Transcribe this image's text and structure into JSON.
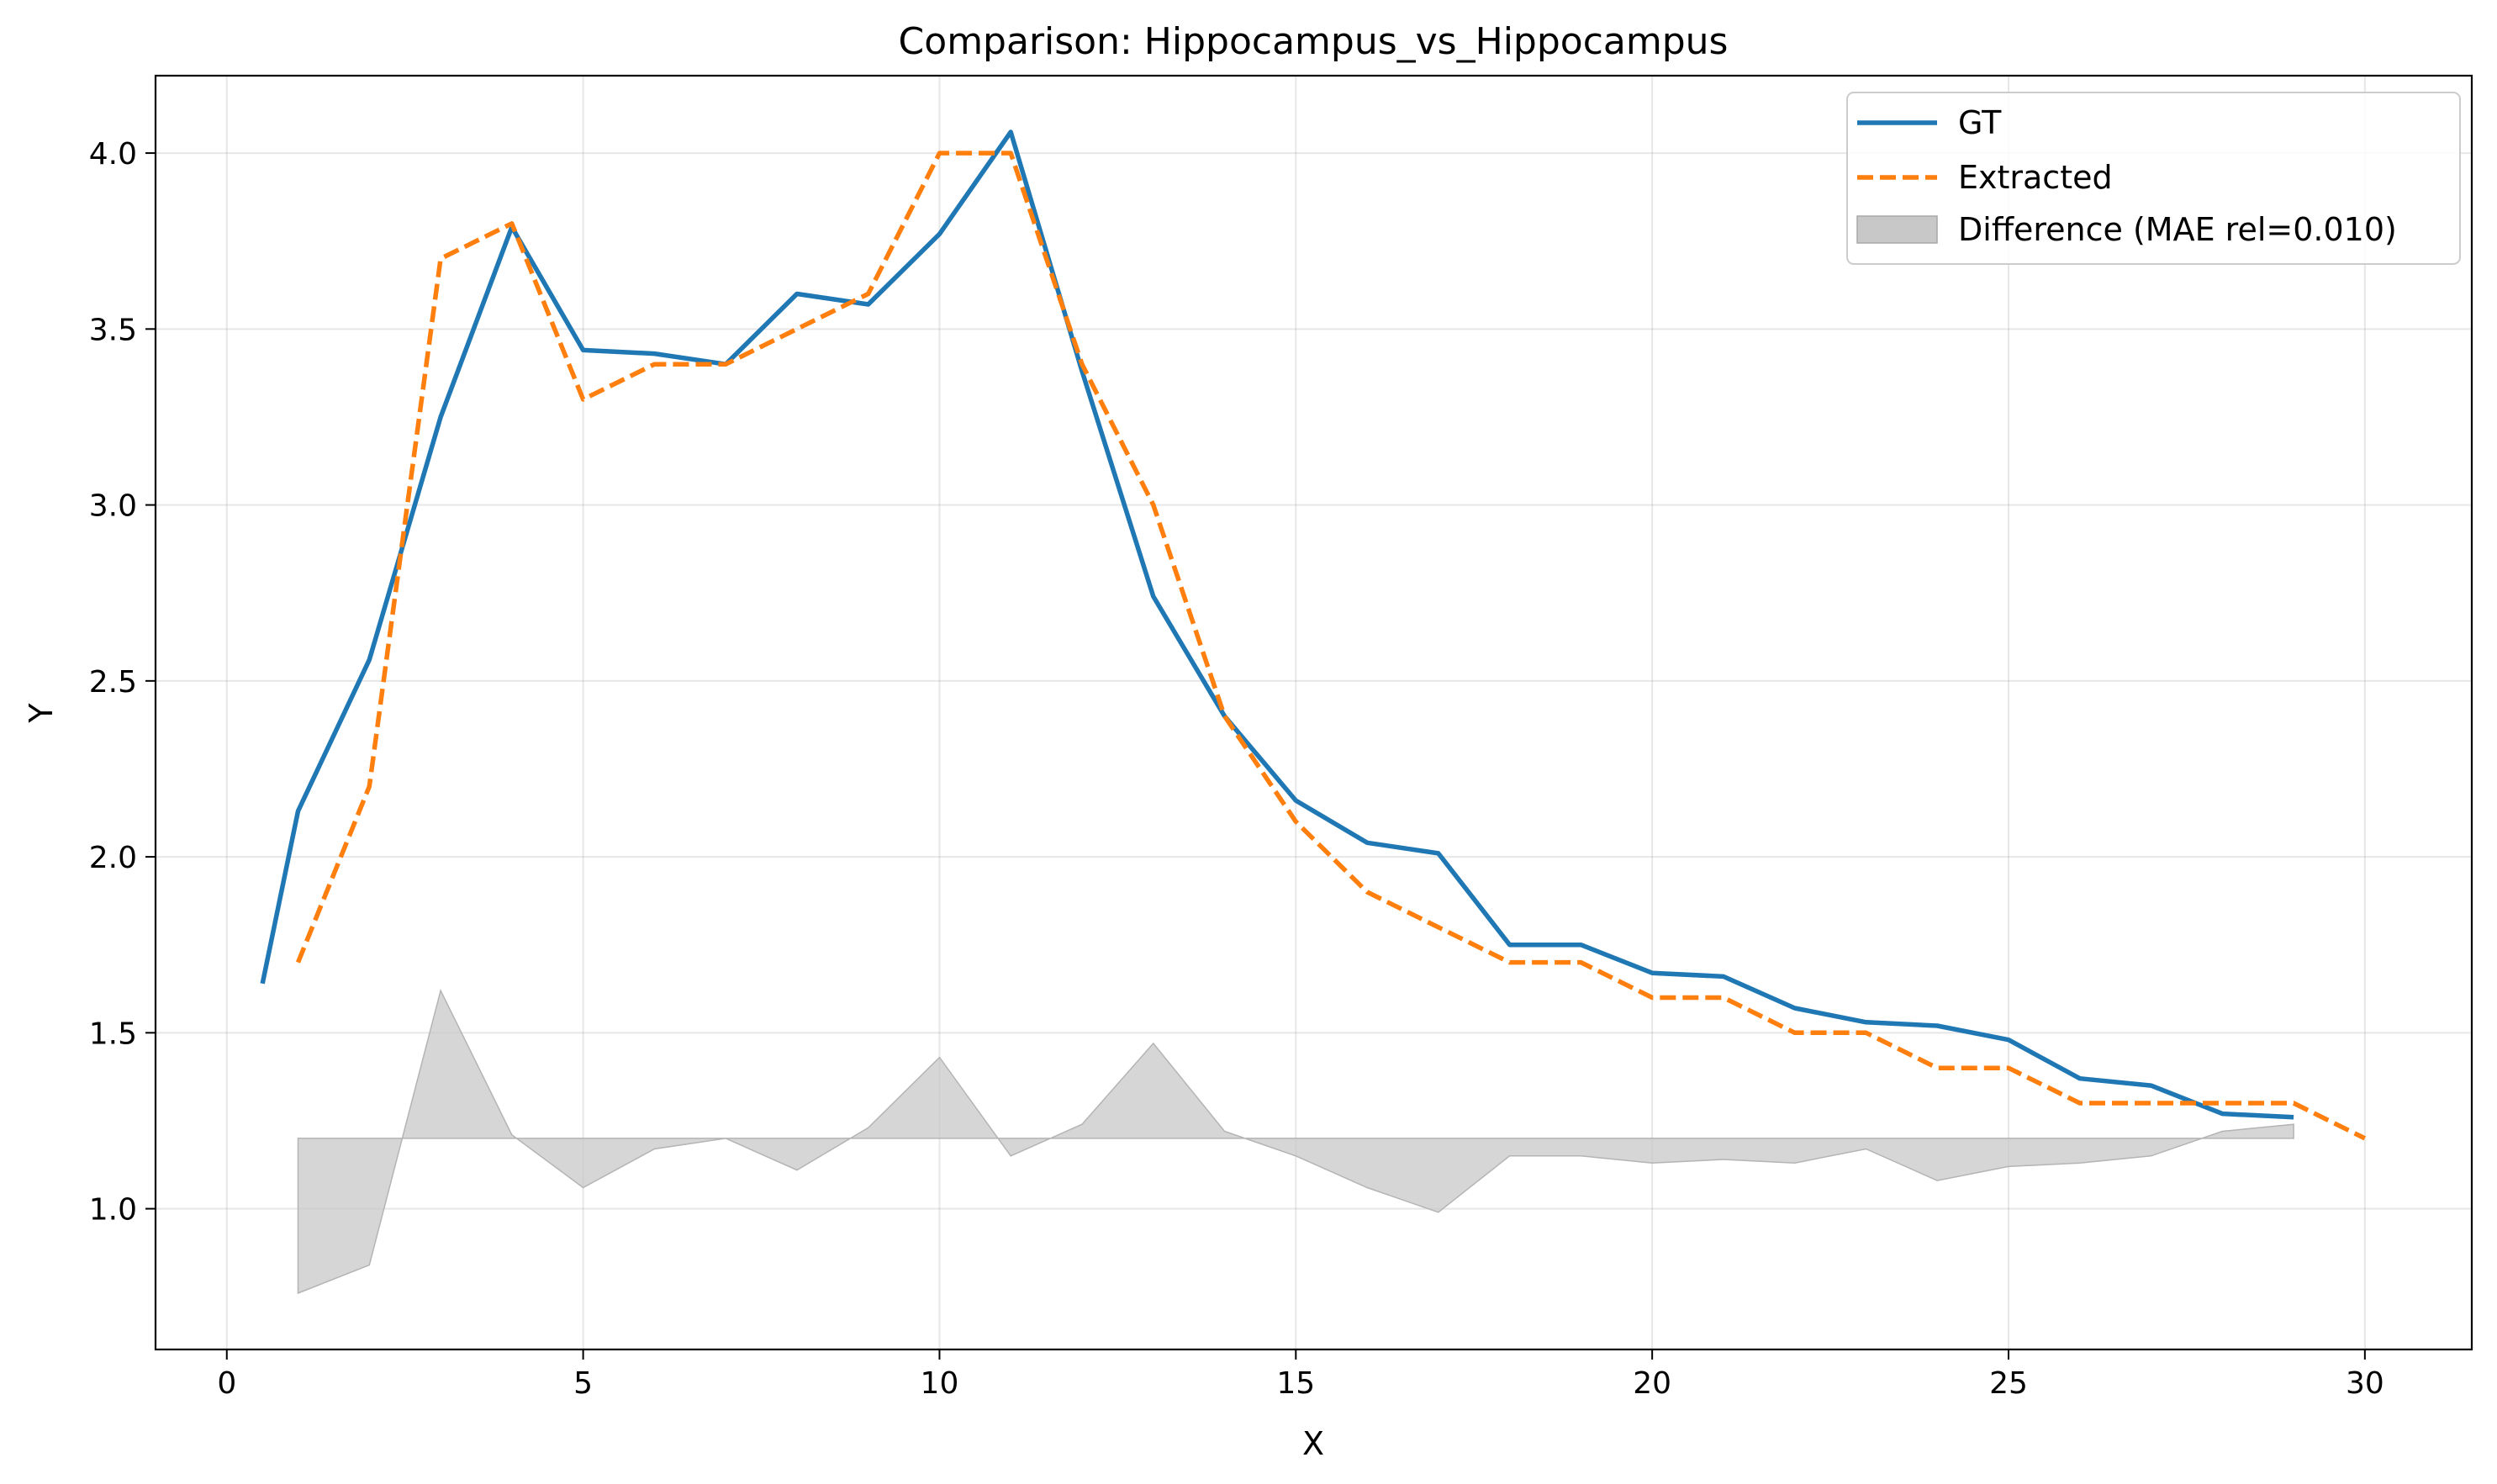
{
  "chart_data": {
    "type": "line",
    "title": "Comparison: Hippocampus_vs_Hippocampus",
    "xlabel": "X",
    "ylabel": "Y",
    "xlim": [
      -1,
      31.5
    ],
    "ylim": [
      0.6,
      4.22
    ],
    "xticks": [
      0,
      5,
      10,
      15,
      20,
      25,
      30
    ],
    "yticks": [
      1.0,
      1.5,
      2.0,
      2.5,
      3.0,
      3.5,
      4.0
    ],
    "xtick_labels": [
      "0",
      "5",
      "10",
      "15",
      "20",
      "25",
      "30"
    ],
    "ytick_labels": [
      "1.0",
      "1.5",
      "2.0",
      "2.5",
      "3.0",
      "3.5",
      "4.0"
    ],
    "grid": true,
    "legend_position": "top-right",
    "colors": {
      "gt": "#1f77b4",
      "extracted": "#ff7f0e",
      "difference": "#c8c8c8"
    },
    "series": [
      {
        "name": "GT",
        "style": "solid",
        "x": [
          0.5,
          1,
          2,
          3,
          4,
          5,
          6,
          7,
          8,
          9,
          10,
          11,
          12,
          13,
          14,
          15,
          16,
          17,
          18,
          19,
          20,
          21,
          22,
          23,
          24,
          25,
          26,
          27,
          28,
          29
        ],
        "y": [
          1.64,
          2.13,
          2.56,
          3.25,
          3.79,
          3.44,
          3.43,
          3.4,
          3.6,
          3.57,
          3.77,
          4.06,
          3.38,
          2.74,
          2.4,
          2.16,
          2.04,
          2.01,
          1.75,
          1.75,
          1.67,
          1.66,
          1.57,
          1.53,
          1.52,
          1.48,
          1.37,
          1.35,
          1.27,
          1.26
        ]
      },
      {
        "name": "Extracted",
        "style": "dashed",
        "x": [
          1,
          2,
          3,
          4,
          5,
          6,
          7,
          8,
          9,
          10,
          11,
          12,
          13,
          14,
          15,
          16,
          17,
          18,
          19,
          20,
          21,
          22,
          23,
          24,
          25,
          26,
          27,
          28,
          29,
          30
        ],
        "y": [
          1.7,
          2.2,
          3.7,
          3.8,
          3.3,
          3.4,
          3.4,
          3.5,
          3.6,
          4.0,
          4.0,
          3.4,
          3.0,
          2.4,
          2.1,
          1.9,
          1.8,
          1.7,
          1.7,
          1.6,
          1.6,
          1.5,
          1.5,
          1.4,
          1.4,
          1.3,
          1.3,
          1.3,
          1.3,
          1.2
        ]
      },
      {
        "name": "Difference (MAE rel=0.010)",
        "style": "fill",
        "baseline": 1.2,
        "x": [
          1,
          2,
          3,
          4,
          5,
          6,
          7,
          8,
          9,
          10,
          11,
          12,
          13,
          14,
          15,
          16,
          17,
          18,
          19,
          20,
          21,
          22,
          23,
          24,
          25,
          26,
          27,
          28,
          29
        ],
        "y": [
          0.76,
          0.84,
          1.62,
          1.21,
          1.06,
          1.17,
          1.2,
          1.11,
          1.23,
          1.43,
          1.15,
          1.24,
          1.47,
          1.22,
          1.15,
          1.06,
          0.99,
          1.15,
          1.15,
          1.13,
          1.14,
          1.13,
          1.17,
          1.08,
          1.12,
          1.13,
          1.15,
          1.22,
          1.24
        ]
      }
    ]
  }
}
